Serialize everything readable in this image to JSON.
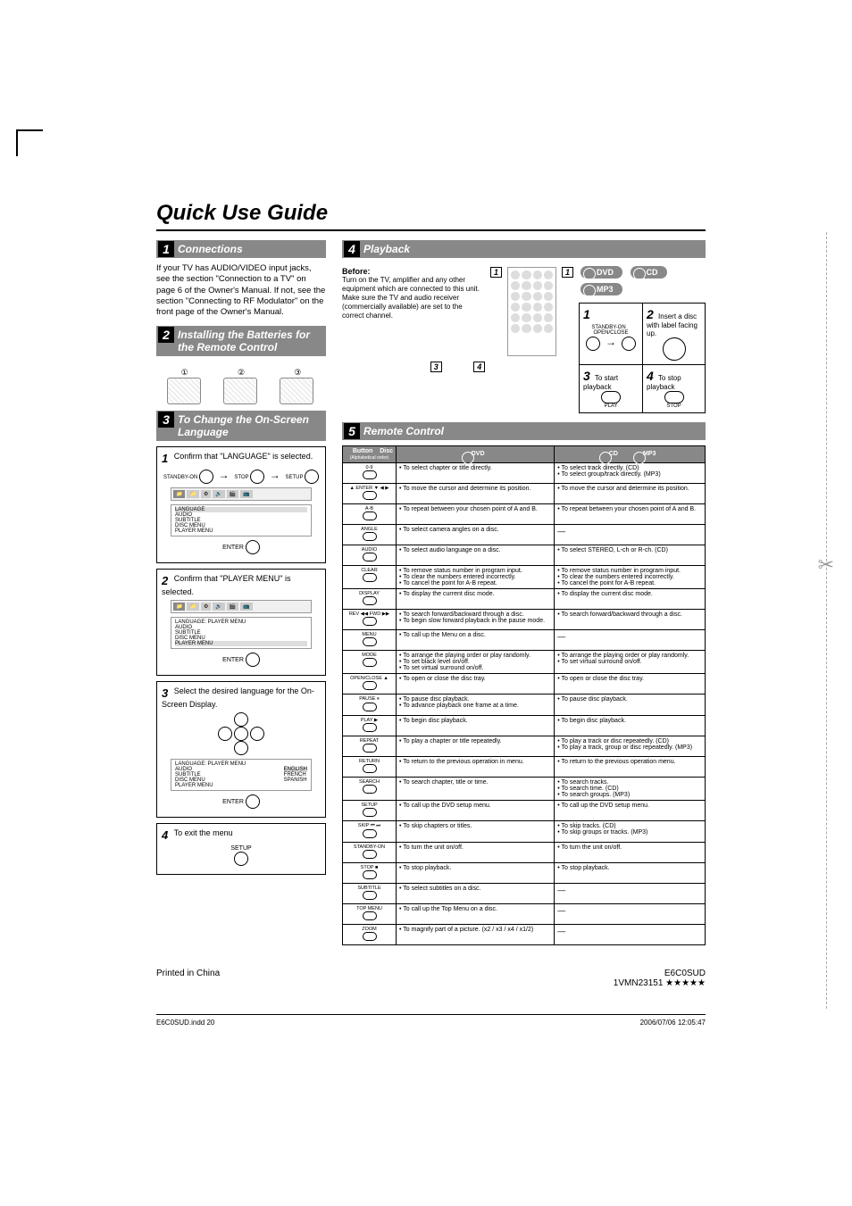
{
  "page_title": "Quick Use Guide",
  "sections": {
    "connections": {
      "num": "1",
      "title": "Connections",
      "text": "If your TV has AUDIO/VIDEO input jacks, see the section \"Connection to a TV\" on page 6 of the Owner's Manual. If not, see the section \"Connecting to RF Modulator\" on the front page of the Owner's Manual."
    },
    "batteries": {
      "num": "2",
      "title": "Installing the Batteries for the Remote Control",
      "labels": [
        "①",
        "②",
        "③"
      ]
    },
    "language": {
      "num": "3",
      "title": "To Change the On-Screen Language",
      "step1_num": "1",
      "step1": "Confirm that \"LANGUAGE\" is selected.",
      "step2_num": "2",
      "step2": "Confirm that \"PLAYER MENU\" is selected.",
      "step3_num": "3",
      "step3": "Select the desired language for the On-Screen Display.",
      "step4_num": "4",
      "step4": "To exit the menu",
      "menu_tabs": [
        "📁",
        "📁",
        "⚙",
        "🔊",
        "🎬",
        "📺"
      ],
      "lang_items": [
        "LANGUAGE",
        "AUDIO",
        "SUBTITLE",
        "DISC MENU",
        "PLAYER MENU"
      ],
      "player_menu_label": "LANGUAGE: PLAYER MENU",
      "player_menu_items": [
        "AUDIO",
        "SUBTITLE",
        "DISC MENU",
        "PLAYER MENU"
      ],
      "lang_options": [
        "ENGLISH",
        "FRENCH",
        "SPANISH"
      ],
      "btn_standby": "STANDBY-ON",
      "btn_stop": "STOP",
      "btn_setup": "SETUP",
      "btn_enter": "ENTER"
    },
    "playback": {
      "num": "4",
      "title": "Playback",
      "before_label": "Before:",
      "before_text": "Turn on the TV, amplifier and any other equipment which are connected to this unit. Make sure the TV and audio receiver (commercially available) are set to the correct channel.",
      "discs": [
        "DVD",
        "CD",
        "MP3"
      ],
      "cells": [
        {
          "num": "1",
          "text": "",
          "labels": [
            "STANDBY-ON",
            "OPEN/CLOSE"
          ]
        },
        {
          "num": "2",
          "text": "Insert a disc with label facing up."
        },
        {
          "num": "3",
          "text": "To start playback",
          "label_below": "PLAY"
        },
        {
          "num": "4",
          "text": "To stop playback",
          "label_below": "STOP"
        }
      ],
      "callouts": [
        "1",
        "1",
        "3",
        "4"
      ]
    },
    "remote": {
      "num": "5",
      "title": "Remote Control",
      "header_button": "Button",
      "header_disc": "Disc",
      "header_alpha": "(Alphabetical order)",
      "col_dvd": "DVD",
      "col_cd": "CD",
      "col_mp3": "MP3",
      "rows": [
        {
          "btn": "0-9",
          "dvd": "• To select chapter or title directly.",
          "cd": "• To select track directly. (CD)\n• To select group/track directly. (MP3)"
        },
        {
          "btn": "▲ ENTER ▼ ◀ ▶",
          "dvd": "• To move the cursor and determine its position.",
          "cd": "• To move the cursor and determine its position."
        },
        {
          "btn": "A-B",
          "dvd": "• To repeat between your chosen point of A and B.",
          "cd": "• To repeat between your chosen point of A and B."
        },
        {
          "btn": "ANGLE",
          "dvd": "• To select camera angles on a disc.",
          "cd": "—"
        },
        {
          "btn": "AUDIO",
          "dvd": "• To select audio language on a disc.",
          "cd": "• To select STEREO, L-ch or R-ch. (CD)"
        },
        {
          "btn": "CLEAR",
          "dvd": "• To remove status number in program input.\n• To clear the numbers entered incorrectly.\n• To cancel the point for A-B repeat.",
          "cd": "• To remove status number in program input.\n• To clear the numbers entered incorrectly.\n• To cancel the point for A-B repeat."
        },
        {
          "btn": "DISPLAY",
          "dvd": "• To display the current disc mode.",
          "cd": "• To display the current disc mode."
        },
        {
          "btn": "REV ◀◀ FWD ▶▶",
          "dvd": "• To search forward/backward through a disc.\n• To begin slow forward playback in the pause mode.",
          "cd": "• To search forward/backward through a disc."
        },
        {
          "btn": "MENU",
          "dvd": "• To call up the Menu on a disc.",
          "cd": "—"
        },
        {
          "btn": "MODE",
          "dvd": "• To arrange the playing order or play randomly.\n• To set black level on/off.\n• To set virtual surround on/off.",
          "cd": "• To arrange the playing order or play randomly.\n• To set virtual surround on/off."
        },
        {
          "btn": "OPEN/CLOSE ▲",
          "dvd": "• To open or close the disc tray.",
          "cd": "• To open or close the disc tray."
        },
        {
          "btn": "PAUSE ⏸",
          "dvd": "• To pause disc playback.\n• To advance playback one frame at a time.",
          "cd": "• To pause disc playback."
        },
        {
          "btn": "PLAY ▶",
          "dvd": "• To begin disc playback.",
          "cd": "• To begin disc playback."
        },
        {
          "btn": "REPEAT",
          "dvd": "• To play a chapter or title repeatedly.",
          "cd": "• To play a track or disc repeatedly. (CD)\n• To play a track, group or disc repeatedly. (MP3)"
        },
        {
          "btn": "RETURN",
          "dvd": "• To return to the previous operation in menu.",
          "cd": "• To return to the previous operation menu."
        },
        {
          "btn": "SEARCH",
          "dvd": "• To search chapter, title or time.",
          "cd": "• To search tracks.\n• To search time. (CD)\n• To search groups. (MP3)"
        },
        {
          "btn": "SETUP",
          "dvd": "• To call up the DVD setup menu.",
          "cd": "• To call up the DVD setup menu."
        },
        {
          "btn": "SKIP ⏮ ⏭",
          "dvd": "• To skip chapters or titles.",
          "cd": "• To skip tracks. (CD)\n• To skip groups or tracks. (MP3)"
        },
        {
          "btn": "STANDBY-ON",
          "dvd": "• To turn the unit on/off.",
          "cd": "• To turn the unit on/off."
        },
        {
          "btn": "STOP ■",
          "dvd": "• To stop playback.",
          "cd": "• To stop playback."
        },
        {
          "btn": "SUBTITLE",
          "dvd": "• To select subtitles on a disc.",
          "cd": "—"
        },
        {
          "btn": "TOP MENU",
          "dvd": "• To call up the Top Menu on a disc.",
          "cd": "—"
        },
        {
          "btn": "ZOOM",
          "dvd": "• To magnify part of a picture. (x2 / x3 / x4 / x1/2)",
          "cd": "—"
        }
      ]
    }
  },
  "footer": {
    "left": "Printed in China",
    "right_top": "E6C0SUD",
    "right_bottom": "1VMN23151 ★★★★★"
  },
  "meta": {
    "file": "E6C0SUD.indd   20",
    "timestamp": "2006/07/06   12:05:47"
  }
}
